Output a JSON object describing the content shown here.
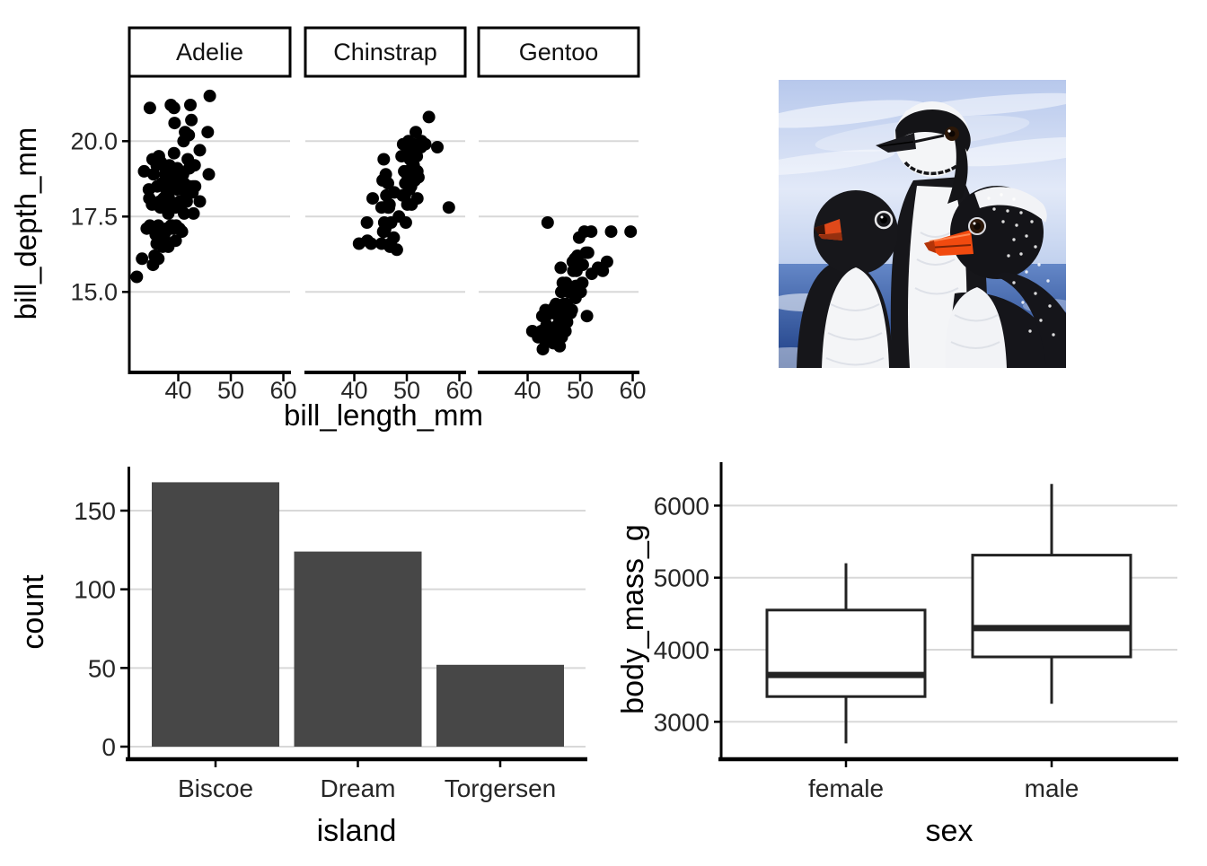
{
  "page": {
    "background": "#ffffff",
    "photo_alt": "Three penguins (Adelie, Chinstrap and Gentoo) in front of a blue sky and sea"
  },
  "colors": {
    "point": "#000000",
    "bar_fill": "#474747",
    "gridline": "#d8d8d8",
    "axis_line": "#000000",
    "tick_label": "#262626",
    "axis_title": "#000000",
    "strip_border": "#000000",
    "strip_fill": "#ffffff",
    "box_stroke": "#232323",
    "box_fill": "#ffffff"
  },
  "chart_data": [
    {
      "type": "scatter",
      "facet_variable": "species",
      "facets": [
        "Adelie",
        "Chinstrap",
        "Gentoo"
      ],
      "xlabel": "bill_length_mm",
      "ylabel": "bill_depth_mm",
      "x_ticks": [
        40,
        50,
        60
      ],
      "x_tick_labels": [
        "40",
        "50",
        "60"
      ],
      "y_ticks": [
        15.0,
        17.5,
        20.0
      ],
      "y_tick_labels": [
        "15.0",
        "17.5",
        "20.0"
      ],
      "xlim": [
        30.7,
        61.1
      ],
      "ylim": [
        12.5,
        22.1
      ],
      "grid": "horizontal-major-only",
      "series": [
        {
          "name": "Adelie",
          "points": [
            [
              32.1,
              15.5
            ],
            [
              33.1,
              16.1
            ],
            [
              33.5,
              19.0
            ],
            [
              34.0,
              17.1
            ],
            [
              34.4,
              18.4
            ],
            [
              34.5,
              18.1
            ],
            [
              34.6,
              17.2
            ],
            [
              34.6,
              21.1
            ],
            [
              35.0,
              17.9
            ],
            [
              35.1,
              19.4
            ],
            [
              35.2,
              15.9
            ],
            [
              35.3,
              18.9
            ],
            [
              35.5,
              16.2
            ],
            [
              35.7,
              16.9
            ],
            [
              35.9,
              16.6
            ],
            [
              35.9,
              19.2
            ],
            [
              36.0,
              17.9
            ],
            [
              36.0,
              18.5
            ],
            [
              36.2,
              16.1
            ],
            [
              36.2,
              17.2
            ],
            [
              36.3,
              19.5
            ],
            [
              36.4,
              17.0
            ],
            [
              36.5,
              16.6
            ],
            [
              36.5,
              18.0
            ],
            [
              36.6,
              17.8
            ],
            [
              36.7,
              19.3
            ],
            [
              36.9,
              18.6
            ],
            [
              37.0,
              16.5
            ],
            [
              37.0,
              16.9
            ],
            [
              37.2,
              18.1
            ],
            [
              37.3,
              16.8
            ],
            [
              37.3,
              17.8
            ],
            [
              37.5,
              18.9
            ],
            [
              37.6,
              17.0
            ],
            [
              37.6,
              19.1
            ],
            [
              37.7,
              18.7
            ],
            [
              37.8,
              17.1
            ],
            [
              37.8,
              18.3
            ],
            [
              37.9,
              18.6
            ],
            [
              38.1,
              16.5
            ],
            [
              38.1,
              17.6
            ],
            [
              38.2,
              18.1
            ],
            [
              38.3,
              19.2
            ],
            [
              38.5,
              17.9
            ],
            [
              38.6,
              17.2
            ],
            [
              38.6,
              21.2
            ],
            [
              38.7,
              19.0
            ],
            [
              38.8,
              17.2
            ],
            [
              38.8,
              19.0
            ],
            [
              38.9,
              17.8
            ],
            [
              38.9,
              18.8
            ],
            [
              39.0,
              17.1
            ],
            [
              39.0,
              18.7
            ],
            [
              39.1,
              18.7
            ],
            [
              39.2,
              19.6
            ],
            [
              39.2,
              21.1
            ],
            [
              39.3,
              20.6
            ],
            [
              39.5,
              16.7
            ],
            [
              39.5,
              17.8
            ],
            [
              39.6,
              17.2
            ],
            [
              39.6,
              18.8
            ],
            [
              39.7,
              18.4
            ],
            [
              39.8,
              19.1
            ],
            [
              40.1,
              18.9
            ],
            [
              40.2,
              17.1
            ],
            [
              40.3,
              18.0
            ],
            [
              40.5,
              17.9
            ],
            [
              40.6,
              18.6
            ],
            [
              40.7,
              17.0
            ],
            [
              40.8,
              18.4
            ],
            [
              40.9,
              18.9
            ],
            [
              41.0,
              20.0
            ],
            [
              41.1,
              17.6
            ],
            [
              41.1,
              18.6
            ],
            [
              41.3,
              20.3
            ],
            [
              41.4,
              18.5
            ],
            [
              41.5,
              18.3
            ],
            [
              41.6,
              18.0
            ],
            [
              41.8,
              19.4
            ],
            [
              42.0,
              20.2
            ],
            [
              42.1,
              19.1
            ],
            [
              42.2,
              18.5
            ],
            [
              42.3,
              21.2
            ],
            [
              42.5,
              20.7
            ],
            [
              42.7,
              18.3
            ],
            [
              42.8,
              18.5
            ],
            [
              42.9,
              17.6
            ],
            [
              43.1,
              19.2
            ],
            [
              43.2,
              18.5
            ],
            [
              44.1,
              19.7
            ],
            [
              44.1,
              18.0
            ],
            [
              45.6,
              20.3
            ],
            [
              45.8,
              18.9
            ],
            [
              46.0,
              21.5
            ]
          ]
        },
        {
          "name": "Chinstrap",
          "points": [
            [
              40.9,
              16.6
            ],
            [
              42.4,
              17.3
            ],
            [
              42.5,
              16.7
            ],
            [
              43.2,
              16.6
            ],
            [
              43.5,
              18.1
            ],
            [
              45.2,
              16.6
            ],
            [
              45.2,
              17.8
            ],
            [
              45.4,
              18.7
            ],
            [
              45.5,
              17.0
            ],
            [
              45.6,
              19.4
            ],
            [
              45.7,
              17.0
            ],
            [
              45.7,
              17.3
            ],
            [
              45.9,
              17.1
            ],
            [
              46.0,
              18.9
            ],
            [
              46.1,
              18.2
            ],
            [
              46.4,
              17.8
            ],
            [
              46.4,
              18.6
            ],
            [
              46.5,
              17.9
            ],
            [
              46.6,
              17.8
            ],
            [
              46.7,
              17.9
            ],
            [
              46.8,
              16.5
            ],
            [
              46.9,
              16.6
            ],
            [
              47.0,
              17.3
            ],
            [
              47.5,
              16.8
            ],
            [
              47.6,
              18.3
            ],
            [
              48.1,
              16.4
            ],
            [
              48.5,
              17.5
            ],
            [
              49.0,
              19.5
            ],
            [
              49.2,
              18.2
            ],
            [
              49.3,
              19.9
            ],
            [
              49.5,
              19.0
            ],
            [
              49.6,
              18.2
            ],
            [
              49.7,
              18.6
            ],
            [
              49.8,
              17.3
            ],
            [
              50.0,
              19.5
            ],
            [
              50.1,
              17.9
            ],
            [
              50.2,
              18.8
            ],
            [
              50.3,
              20.0
            ],
            [
              50.5,
              18.4
            ],
            [
              50.5,
              19.6
            ],
            [
              50.6,
              19.4
            ],
            [
              50.7,
              19.7
            ],
            [
              50.8,
              18.5
            ],
            [
              50.8,
              19.0
            ],
            [
              50.9,
              17.9
            ],
            [
              50.9,
              19.1
            ],
            [
              51.0,
              18.8
            ],
            [
              51.3,
              19.2
            ],
            [
              51.3,
              19.9
            ],
            [
              51.4,
              19.0
            ],
            [
              51.5,
              18.7
            ],
            [
              51.7,
              20.3
            ],
            [
              51.9,
              19.5
            ],
            [
              52.0,
              18.1
            ],
            [
              52.0,
              19.0
            ],
            [
              52.2,
              18.8
            ],
            [
              52.7,
              19.8
            ],
            [
              52.8,
              20.0
            ],
            [
              53.5,
              19.9
            ],
            [
              54.2,
              20.8
            ],
            [
              55.8,
              19.8
            ],
            [
              58.0,
              17.8
            ]
          ]
        },
        {
          "name": "Gentoo",
          "points": [
            [
              40.9,
              13.7
            ],
            [
              42.0,
              13.5
            ],
            [
              42.6,
              13.7
            ],
            [
              42.7,
              13.7
            ],
            [
              42.8,
              14.2
            ],
            [
              42.9,
              13.1
            ],
            [
              43.3,
              13.4
            ],
            [
              43.4,
              14.4
            ],
            [
              43.5,
              14.2
            ],
            [
              43.6,
              13.9
            ],
            [
              43.8,
              17.3
            ],
            [
              44.0,
              13.6
            ],
            [
              44.5,
              14.3
            ],
            [
              44.9,
              13.3
            ],
            [
              45.1,
              14.5
            ],
            [
              45.2,
              13.8
            ],
            [
              45.3,
              13.7
            ],
            [
              45.4,
              14.6
            ],
            [
              45.5,
              13.7
            ],
            [
              45.5,
              14.5
            ],
            [
              45.7,
              13.9
            ],
            [
              45.8,
              14.2
            ],
            [
              46.1,
              13.2
            ],
            [
              46.2,
              14.5
            ],
            [
              46.3,
              15.8
            ],
            [
              46.4,
              15.0
            ],
            [
              46.5,
              13.5
            ],
            [
              46.5,
              14.5
            ],
            [
              46.6,
              14.2
            ],
            [
              46.7,
              15.3
            ],
            [
              46.8,
              14.3
            ],
            [
              46.9,
              14.6
            ],
            [
              47.2,
              13.7
            ],
            [
              47.3,
              15.3
            ],
            [
              47.4,
              14.6
            ],
            [
              47.5,
              14.0
            ],
            [
              47.6,
              14.5
            ],
            [
              47.8,
              15.0
            ],
            [
              48.1,
              15.1
            ],
            [
              48.2,
              14.3
            ],
            [
              48.4,
              14.4
            ],
            [
              48.5,
              15.0
            ],
            [
              48.6,
              16.0
            ],
            [
              48.7,
              15.1
            ],
            [
              48.7,
              15.7
            ],
            [
              49.0,
              16.1
            ],
            [
              49.1,
              14.8
            ],
            [
              49.2,
              15.2
            ],
            [
              49.3,
              15.7
            ],
            [
              49.4,
              15.8
            ],
            [
              49.5,
              16.2
            ],
            [
              49.6,
              16.0
            ],
            [
              49.8,
              16.8
            ],
            [
              50.0,
              15.9
            ],
            [
              50.1,
              15.0
            ],
            [
              50.4,
              15.3
            ],
            [
              50.5,
              15.9
            ],
            [
              50.8,
              17.0
            ],
            [
              51.1,
              16.3
            ],
            [
              51.3,
              14.2
            ],
            [
              51.5,
              16.3
            ],
            [
              52.1,
              17.0
            ],
            [
              52.2,
              15.6
            ],
            [
              53.4,
              15.8
            ],
            [
              54.3,
              15.7
            ],
            [
              55.1,
              16.0
            ],
            [
              55.9,
              17.0
            ],
            [
              59.6,
              17.0
            ]
          ]
        }
      ]
    },
    {
      "type": "bar",
      "categories": [
        "Biscoe",
        "Dream",
        "Torgersen"
      ],
      "values": [
        168,
        124,
        52
      ],
      "xlabel": "island",
      "ylabel": "count",
      "y_ticks": [
        0,
        50,
        100,
        150
      ],
      "y_tick_labels": [
        "0",
        "50",
        "100",
        "150"
      ],
      "ylim": [
        0,
        176
      ],
      "grid": "horizontal-major-only"
    },
    {
      "type": "boxplot",
      "categories": [
        "female",
        "male"
      ],
      "stats": [
        {
          "category": "female",
          "whisker_min": 2700,
          "q1": 3350,
          "median": 3650,
          "q3": 4550,
          "whisker_max": 5200
        },
        {
          "category": "male",
          "whisker_min": 3250,
          "q1": 3900,
          "median": 4300,
          "q3": 5312,
          "whisker_max": 6300
        }
      ],
      "xlabel": "sex",
      "ylabel": "body_mass_g",
      "y_ticks": [
        3000,
        4000,
        5000,
        6000
      ],
      "y_tick_labels": [
        "3000",
        "4000",
        "5000",
        "6000"
      ],
      "ylim": [
        2580,
        6420
      ],
      "grid": "horizontal-major-only"
    }
  ]
}
